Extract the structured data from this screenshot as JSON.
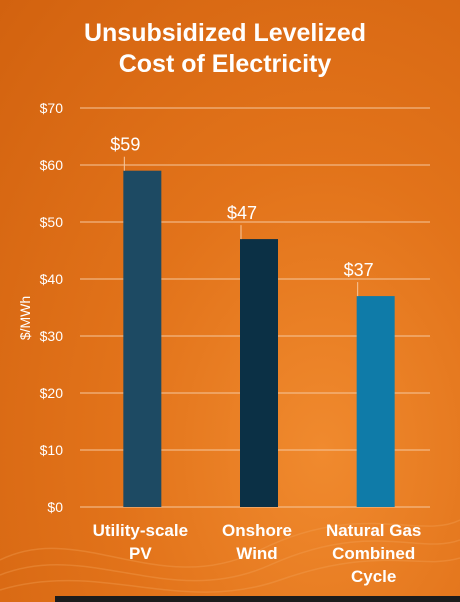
{
  "chart_data": {
    "type": "bar",
    "title_lines": [
      "Unsubsidized Levelized",
      "Cost of Electricity"
    ],
    "ylabel": "$/MWh",
    "ylim": [
      0,
      70
    ],
    "yticks": [
      "$0",
      "$10",
      "$20",
      "$30",
      "$40",
      "$50",
      "$60",
      "$70"
    ],
    "grid": true,
    "categories": [
      [
        "Utility-scale",
        "PV"
      ],
      [
        "Onshore",
        "Wind"
      ],
      [
        "Natural Gas",
        "Combined",
        "Cycle"
      ]
    ],
    "values": [
      59,
      47,
      37
    ],
    "value_labels": [
      "$59",
      "$47",
      "$37"
    ],
    "colors": [
      "#1d4a63",
      "#0b3045",
      "#0f7ba8"
    ]
  }
}
